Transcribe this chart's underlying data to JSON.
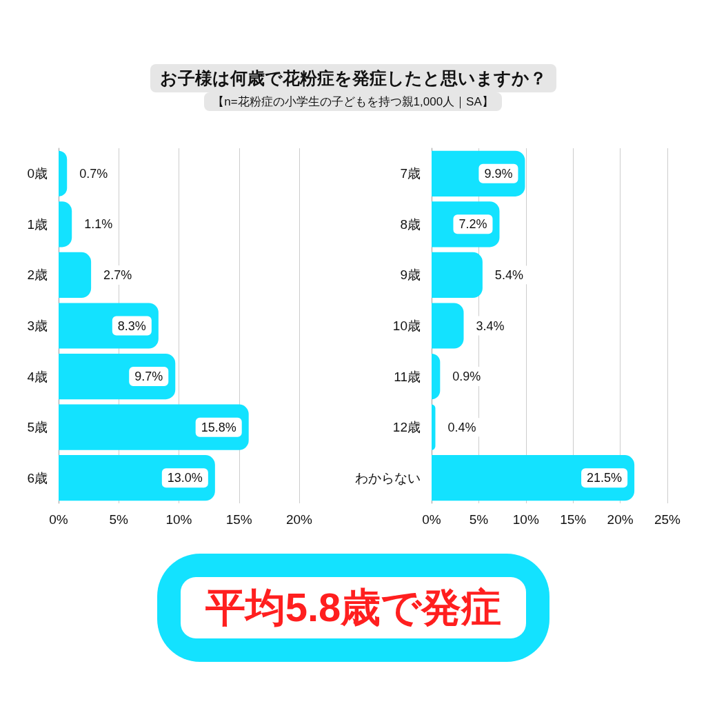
{
  "chart_data": [
    {
      "type": "bar",
      "orientation": "horizontal",
      "title": "お子様は何歳で花粉症を発症したと思いますか？",
      "subtitle": "【n=花粉症の小学生の子どもを持つ親1,000人｜SA】",
      "categories": [
        "0歳",
        "1歳",
        "2歳",
        "3歳",
        "4歳",
        "5歳",
        "6歳"
      ],
      "values": [
        0.7,
        1.1,
        2.7,
        8.3,
        9.7,
        15.8,
        13.0
      ],
      "value_labels": [
        "0.7%",
        "1.1%",
        "2.7%",
        "8.3%",
        "9.7%",
        "15.8%",
        "13.0%"
      ],
      "color": "#13e2ff",
      "xlim": [
        0,
        20
      ],
      "xticks": [
        {
          "value": 0,
          "label": "0%"
        },
        {
          "value": 5,
          "label": "5%"
        },
        {
          "value": 10,
          "label": "10%"
        },
        {
          "value": 15,
          "label": "15%"
        },
        {
          "value": 20,
          "label": "20%"
        }
      ],
      "grid": "x"
    },
    {
      "type": "bar",
      "orientation": "horizontal",
      "categories": [
        "7歳",
        "8歳",
        "9歳",
        "10歳",
        "11歳",
        "12歳",
        "わからない"
      ],
      "values": [
        9.9,
        7.2,
        5.4,
        3.4,
        0.9,
        0.4,
        21.5
      ],
      "value_labels": [
        "9.9%",
        "7.2%",
        "5.4%",
        "3.4%",
        "0.9%",
        "0.4%",
        "21.5%"
      ],
      "color": "#13e2ff",
      "xlim": [
        0,
        25
      ],
      "xticks": [
        {
          "value": 0,
          "label": "0%"
        },
        {
          "value": 5,
          "label": "5%"
        },
        {
          "value": 10,
          "label": "10%"
        },
        {
          "value": 15,
          "label": "15%"
        },
        {
          "value": 20,
          "label": "20%"
        },
        {
          "value": 25,
          "label": "25%"
        }
      ],
      "grid": "x"
    },
    {
      "type": "other",
      "annotations": [
        "平均5.8歳で発症"
      ]
    }
  ]
}
